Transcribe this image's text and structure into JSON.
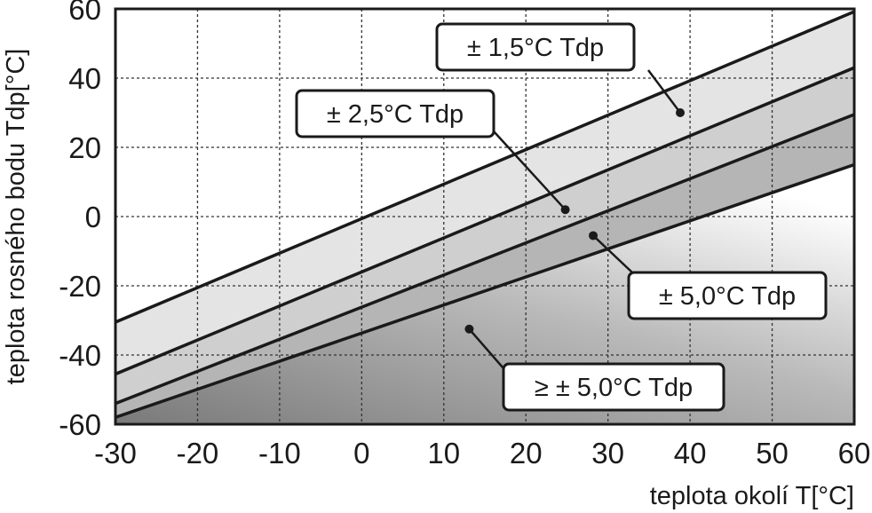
{
  "chart_data": {
    "type": "area",
    "xlabel": "teplota okolí  T[°C]",
    "ylabel": "teplota rosného bodu  Tdp[°C]",
    "xlim": [
      -30,
      60
    ],
    "ylim": [
      -60,
      60
    ],
    "xticks": [
      -30,
      -20,
      -10,
      0,
      10,
      20,
      30,
      40,
      50,
      60
    ],
    "yticks": [
      -60,
      -40,
      -20,
      0,
      20,
      40,
      60
    ],
    "tick_labels_x": [
      "-30",
      "-20",
      "-10",
      "0",
      "10",
      "20",
      "30",
      "40",
      "50",
      "60"
    ],
    "tick_labels_y": [
      "-60",
      "-40",
      "-20",
      "0",
      "20",
      "40",
      "60"
    ],
    "grid": true,
    "grid_style": "dashed",
    "lines": [
      {
        "x": [
          -30,
          60
        ],
        "y": [
          -30.5,
          59.2
        ]
      },
      {
        "x": [
          -30,
          60
        ],
        "y": [
          -45.5,
          43.0
        ]
      },
      {
        "x": [
          -30,
          60
        ],
        "y": [
          -54.0,
          29.5
        ]
      },
      {
        "x": [
          -30,
          60
        ],
        "y": [
          -58.0,
          15.0
        ]
      }
    ],
    "regions": [
      {
        "label": "± 1,5°C Tdp",
        "between": [
          0,
          1
        ],
        "fill": "#e4e4e4",
        "marker": {
          "x": 38.8,
          "y": 30
        }
      },
      {
        "label": "± 2,5°C Tdp",
        "between": [
          1,
          2
        ],
        "fill": "#cfcfcf",
        "marker": {
          "x": 24.8,
          "y": 2
        }
      },
      {
        "label": "± 5,0°C Tdp",
        "between": [
          2,
          3
        ],
        "fill": "#b5b5b5",
        "marker": {
          "x": 28.2,
          "y": -5.5
        }
      },
      {
        "label": "≥ ± 5,0°C Tdp",
        "between": [
          3,
          "bottom"
        ],
        "fill": "gradient",
        "marker": {
          "x": 13.1,
          "y": -32.5
        }
      }
    ],
    "colors": {
      "line": "#1a1a1a",
      "grid": "#333333",
      "frame": "#1a1a1a"
    }
  }
}
